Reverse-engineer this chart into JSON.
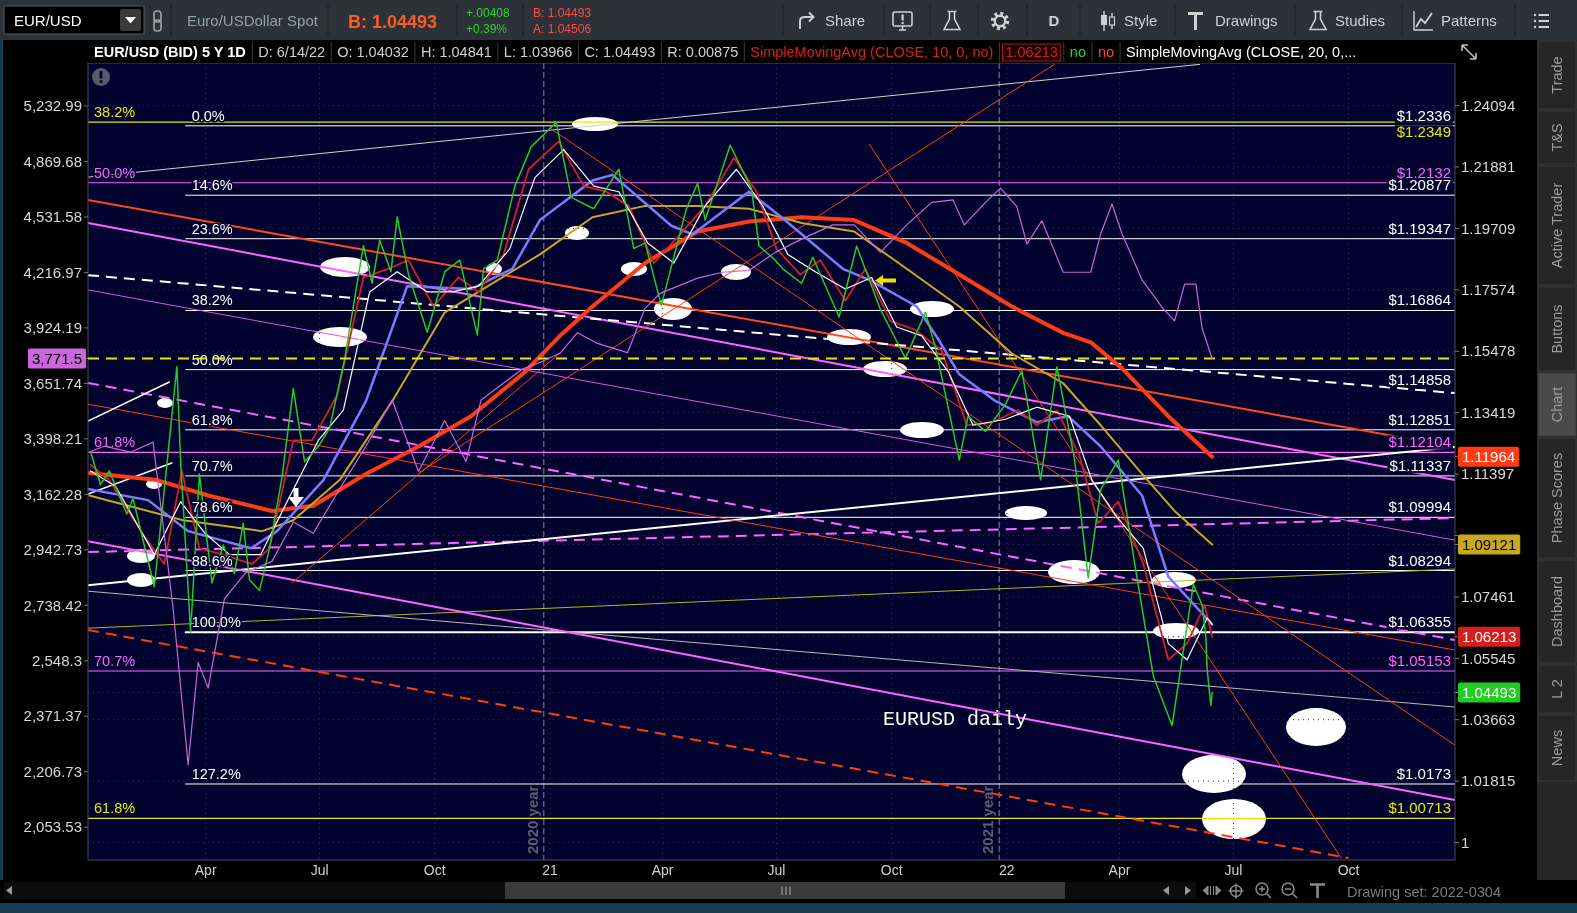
{
  "chart_data": [
    {
      "type": "line",
      "title": "EUR/USD (BID) 5 Y 1D",
      "legend": "top",
      "grid": true,
      "log": true,
      "annotations": [
        "D: 6/14/22",
        "O: 1.04032",
        "H: 1.04841",
        "L: 1.03966",
        "C: 1.04493",
        "R: 0.00875",
        "1.06213",
        "no",
        "no",
        "EURUSD daily",
        {
          "text": "0.0%",
          "x": "2020-03-16",
          "y": 1.2336
        },
        {
          "text": "14.6%",
          "x": "2020-03-16",
          "y": 1.20877
        },
        {
          "text": "23.6%",
          "x": "2020-03-16",
          "y": 1.19347
        },
        {
          "text": "38.2%",
          "x": "2020-03-16",
          "y": 1.16864
        },
        {
          "text": "50.0%",
          "x": "2020-03-16",
          "y": 1.14858
        },
        {
          "text": "61.8%",
          "x": "2020-03-16",
          "y": 1.12851
        },
        {
          "text": "70.7%",
          "x": "2020-03-16",
          "y": 1.11337
        },
        {
          "text": "78.6%",
          "x": "2020-03-16",
          "y": 1.09994
        },
        {
          "text": "88.6%",
          "x": "2020-03-16",
          "y": 1.08294
        },
        {
          "text": "100.0%",
          "x": "2020-03-16",
          "y": 1.06355
        },
        {
          "text": "127.2%",
          "x": "2020-03-16",
          "y": 1.0173
        },
        {
          "text": "38.2%",
          "x": "2019-12-29",
          "y": 1.2349
        },
        {
          "text": "50.0%",
          "x": "2019-12-29",
          "y": 1.2132
        },
        {
          "text": "61.8%",
          "x": "2019-12-29",
          "y": 1.12104
        },
        {
          "text": "70.7%",
          "x": "2019-12-29",
          "y": 1.05153
        },
        {
          "text": "61.8%",
          "x": "2019-12-29",
          "y": 1.00713
        }
      ],
      "xlim": [
        "2019-12-29",
        "2022-12-25"
      ],
      "xticks": [
        {
          "value": "2020-04-01",
          "label": "Apr"
        },
        {
          "value": "2020-07-01",
          "label": "Jul"
        },
        {
          "value": "2020-10-01",
          "label": "Oct"
        },
        {
          "value": "2021-01-01",
          "label": "21"
        },
        {
          "value": "2021-04-01",
          "label": "Apr"
        },
        {
          "value": "2021-07-01",
          "label": "Jul"
        },
        {
          "value": "2021-10-01",
          "label": "Oct"
        },
        {
          "value": "2022-01-01",
          "label": "22"
        },
        {
          "value": "2022-04-01",
          "label": "Apr"
        },
        {
          "value": "2022-07-01",
          "label": "Jul"
        },
        {
          "value": "2022-10-01",
          "label": "Oct"
        }
      ],
      "ylim": [
        0.9949,
        1.2565
      ],
      "yticks": [
        1,
        1.01815,
        1.03663,
        1.04493,
        1.05545,
        1.06213,
        1.07461,
        1.09121,
        {
          "value": 1.09411,
          "label": null
        },
        1.11397,
        1.11964,
        1.13419,
        1.15478,
        1.17574,
        1.19709,
        1.21881,
        1.24094
      ],
      "ref_lines": [
        {
          "axis": "x",
          "value": "2020-12-27",
          "label": "2020 year",
          "color": "#5e5e72",
          "line_style": "dashed"
        },
        {
          "axis": "x",
          "value": "2021-12-26",
          "label": "2021 year",
          "color": "#5e5e72",
          "line_style": "dashed"
        }
      ],
      "series": [
        {
          "color": "#ffffff",
          "x": [
            "2020-03-16",
            "2022-12-25"
          ],
          "values": [
            1.2336,
            1.2336
          ],
          "value_labels": [
            null,
            "$1.2336"
          ]
        },
        {
          "color": "#ffffff",
          "x": [
            "2020-03-16",
            "2022-12-25"
          ],
          "values": [
            1.20877,
            1.20877
          ],
          "value_labels": [
            null,
            "$1.20877"
          ]
        },
        {
          "color": "#ffffff",
          "x": [
            "2020-03-16",
            "2022-12-25"
          ],
          "values": [
            1.19347,
            1.19347
          ],
          "value_labels": [
            null,
            "$1.19347"
          ]
        },
        {
          "color": "#ffffff",
          "x": [
            "2020-03-16",
            "2022-12-25"
          ],
          "values": [
            1.16864,
            1.16864
          ],
          "value_labels": [
            null,
            "$1.16864"
          ]
        },
        {
          "color": "#ffffff",
          "x": [
            "2020-03-16",
            "2022-12-25"
          ],
          "values": [
            1.14858,
            1.14858
          ],
          "value_labels": [
            null,
            "$1.14858"
          ]
        },
        {
          "color": "#ffffff",
          "x": [
            "2020-03-16",
            "2022-12-25"
          ],
          "values": [
            1.12851,
            1.12851
          ],
          "value_labels": [
            null,
            "$1.12851"
          ]
        },
        {
          "color": "#ffffff",
          "x": [
            "2020-03-16",
            "2022-12-25"
          ],
          "values": [
            1.11337,
            1.11337
          ],
          "value_labels": [
            null,
            "$1.11337"
          ]
        },
        {
          "color": "#ffffff",
          "x": [
            "2020-03-16",
            "2022-12-25"
          ],
          "values": [
            1.09994,
            1.09994
          ],
          "value_labels": [
            null,
            "$1.09994"
          ]
        },
        {
          "color": "#ffffff",
          "x": [
            "2020-03-16",
            "2022-12-25"
          ],
          "values": [
            1.08294,
            1.08294
          ],
          "value_labels": [
            null,
            "$1.08294"
          ]
        },
        {
          "color": "#ffffff",
          "x": [
            "2020-03-16",
            "2022-12-25"
          ],
          "values": [
            1.06355,
            1.06355
          ],
          "value_labels": [
            null,
            "$1.06355"
          ]
        },
        {
          "color": "#ffffff",
          "x": [
            "2020-03-16",
            "2022-12-25"
          ],
          "values": [
            1.0173,
            1.0173
          ],
          "value_labels": [
            null,
            "$1.0173"
          ]
        },
        {
          "color": "#e8e800",
          "x": [
            "2019-12-29",
            "2022-12-25"
          ],
          "values": [
            1.2349,
            1.2349
          ],
          "value_labels": [
            null,
            "$1.2349"
          ]
        },
        {
          "color": "#ff66ff",
          "x": [
            "2019-12-29",
            "2022-12-25"
          ],
          "values": [
            1.2132,
            1.2132
          ],
          "value_labels": [
            null,
            "$1.2132"
          ]
        },
        {
          "color": "#ff66ff",
          "x": [
            "2019-12-29",
            "2022-12-25"
          ],
          "values": [
            1.12104,
            1.12104
          ],
          "value_labels": [
            null,
            "$1.12104"
          ]
        },
        {
          "color": "#ff66ff",
          "x": [
            "2019-12-29",
            "2022-12-25"
          ],
          "values": [
            1.05153,
            1.05153
          ],
          "value_labels": [
            null,
            "$1.05153"
          ]
        },
        {
          "color": "#e8e800",
          "x": [
            "2019-12-29",
            "2022-12-25"
          ],
          "values": [
            1.00713,
            1.00713
          ],
          "value_labels": [
            null,
            "$1.00713"
          ]
        },
        {
          "color": "#cfcfcf",
          "x": [
            "2019-12-29",
            "2022-06-04"
          ],
          "values": [
            1.2152,
            1.256
          ]
        },
        {
          "color": "#ff4a1c",
          "x": [
            "2019-12-29",
            "2022-12-25"
          ],
          "values": [
            1.2071,
            1.1228
          ]
        },
        {
          "color": "#ff66ff",
          "x": [
            "2019-12-29",
            "2022-12-25"
          ],
          "values": [
            1.199,
            1.112
          ]
        },
        {
          "color": "#ffffff",
          "line_style": "dashed",
          "x": [
            "2019-12-29",
            "2022-12-25"
          ],
          "values": [
            1.1808,
            1.1407
          ]
        },
        {
          "color": "#dd55dd",
          "x": [
            "2019-12-29",
            "2022-12-25"
          ],
          "values": [
            1.1757,
            1.0926
          ]
        },
        {
          "color": "#ff66ff",
          "line_style": "dashed",
          "x": [
            "2019-12-29",
            "2022-12-25"
          ],
          "values": [
            1.1441,
            1.0611
          ]
        },
        {
          "color": "#ff66ff",
          "line_style": "dashed",
          "x": [
            "2019-12-29",
            "2022-12-25"
          ],
          "values": [
            1.0888,
            1.0997
          ]
        },
        {
          "color": "#ffffff",
          "x": [
            "2019-12-29",
            "2022-12-25"
          ],
          "values": [
            1.0783,
            1.1228
          ]
        },
        {
          "color": "#b4b41e",
          "x": [
            "2019-12-29",
            "2022-12-25"
          ],
          "values": [
            1.0648,
            1.0834
          ]
        },
        {
          "color": "#b8b8b8",
          "x": [
            "2019-12-29",
            "2022-12-25"
          ],
          "values": [
            1.0764,
            1.0405
          ]
        },
        {
          "color": "#ff66ff",
          "x": [
            "2019-12-29",
            "2022-12-25"
          ],
          "values": [
            1.0923,
            1.0125
          ]
        },
        {
          "color": "#ff3c14",
          "line_style": "dashed",
          "x": [
            "2019-12-29",
            "2022-10-01"
          ],
          "values": [
            1.0642,
            0.9955
          ]
        },
        {
          "color": "#ff3c14",
          "x": [
            "2019-12-29",
            "2022-12-25"
          ],
          "values": [
            1.137,
            1.058
          ]
        },
        {
          "color": "#ff3c14",
          "x": [
            "2021-01-01",
            "2022-12-25"
          ],
          "values": [
            1.2328,
            1.0289
          ]
        },
        {
          "color": "#ff3c14",
          "x": [
            "2021-09-13",
            "2022-09-25"
          ],
          "values": [
            1.227,
            0.9955
          ]
        },
        {
          "color": "#ff3c14",
          "x": [
            "2020-09-19",
            "2022-02-08"
          ],
          "values": [
            1.1146,
            1.256
          ]
        },
        {
          "color": "#ff3c14",
          "x": [
            "2020-06-09",
            "2021-01-09"
          ],
          "values": [
            1.079,
            1.1542
          ]
        },
        {
          "color": "#ffffff",
          "x": [
            "2019-12-29",
            "2020-03-03"
          ],
          "values": [
            1.1314,
            1.1444
          ]
        },
        {
          "color": "#ffffff",
          "x": [
            "2019-12-29",
            "2020-03-05"
          ],
          "values": [
            1.1075,
            1.1176
          ]
        },
        {
          "color": "#ff3c14",
          "x": [
            "2019-12-30",
            "2020-02-22",
            "2020-04-03",
            "2020-05-24",
            "2020-06-26",
            "2020-08-07",
            "2020-09-18",
            "2020-10-30",
            "2020-12-10",
            "2021-01-09",
            "2021-02-04",
            "2021-03-18",
            "2021-04-29",
            "2021-06-09",
            "2021-07-21",
            "2021-09-01",
            "2021-10-13",
            "2021-11-24",
            "2022-01-05",
            "2022-02-15",
            "2022-03-09",
            "2022-04-03",
            "2022-05-10",
            "2022-06-14"
          ],
          "values": [
            1.1143,
            1.112,
            1.107,
            1.102,
            1.1037,
            1.114,
            1.123,
            1.133,
            1.147,
            1.16,
            1.17,
            1.185,
            1.196,
            1.1995,
            1.201,
            1.2,
            1.192,
            1.181,
            1.17,
            1.161,
            1.1578,
            1.149,
            1.133,
            1.11964
          ]
        },
        {
          "color": "#c8a820",
          "x": [
            "2019-12-30",
            "2020-03-14",
            "2020-05-16",
            "2020-06-10",
            "2020-07-17",
            "2020-08-28",
            "2020-10-09",
            "2020-11-20",
            "2020-12-24",
            "2021-02-04",
            "2021-03-18",
            "2021-04-29",
            "2021-06-09",
            "2021-07-21",
            "2021-09-01",
            "2021-10-13",
            "2021-11-24",
            "2022-01-05",
            "2022-02-15",
            "2022-03-17",
            "2022-04-19",
            "2022-05-15",
            "2022-06-14"
          ],
          "values": [
            1.107,
            1.099,
            1.0955,
            1.099,
            1.112,
            1.138,
            1.168,
            1.179,
            1.188,
            1.201,
            1.205,
            1.205,
            1.204,
            1.199,
            1.196,
            1.183,
            1.17,
            1.154,
            1.144,
            1.13,
            1.114,
            1.102,
            1.09121
          ]
        },
        {
          "color": "#7b7bff",
          "x": [
            "2019-12-30",
            "2020-02-15",
            "2020-03-18",
            "2020-05-07",
            "2020-05-28",
            "2020-07-04",
            "2020-08-07",
            "2020-09-09",
            "2020-10-30",
            "2020-12-02",
            "2020-12-24",
            "2021-02-04",
            "2021-02-20",
            "2021-04-08",
            "2021-04-25",
            "2021-06-09",
            "2021-07-05",
            "2021-08-23",
            "2021-09-14",
            "2021-10-21",
            "2021-11-07",
            "2021-11-24",
            "2021-12-23",
            "2022-01-25",
            "2022-02-19",
            "2022-03-17",
            "2022-04-19",
            "2022-05-10",
            "2022-06-14"
          ],
          "values": [
            1.109,
            1.1055,
            1.0955,
            1.09,
            1.0955,
            1.112,
            1.138,
            1.177,
            1.176,
            1.183,
            1.2,
            1.214,
            1.216,
            1.198,
            1.195,
            1.21,
            1.201,
            1.183,
            1.179,
            1.17,
            1.159,
            1.147,
            1.138,
            1.131,
            1.133,
            1.123,
            1.107,
            1.081,
            1.066
          ]
        },
        {
          "name": "SimpleMovingAvg (CLOSE, 10, 0, no)",
          "color": "#d42020",
          "x": [
            "2019-12-31",
            "2020-01-15",
            "2020-02-10",
            "2020-02-28",
            "2020-03-13",
            "2020-03-27",
            "2020-04-15",
            "2020-05-08",
            "2020-05-22",
            "2020-06-10",
            "2020-06-25",
            "2020-07-15",
            "2020-08-05",
            "2020-08-25",
            "2020-09-10",
            "2020-09-30",
            "2020-10-20",
            "2020-11-05",
            "2020-11-25",
            "2020-12-15",
            "2021-01-08",
            "2021-01-28",
            "2021-02-15",
            "2021-03-05",
            "2021-03-25",
            "2021-04-15",
            "2021-05-05",
            "2021-05-28",
            "2021-06-15",
            "2021-07-01",
            "2021-07-20",
            "2021-08-05",
            "2021-08-25",
            "2021-09-10",
            "2021-09-30",
            "2021-10-20",
            "2021-11-10",
            "2021-11-30",
            "2021-12-20",
            "2022-01-10",
            "2022-01-25",
            "2022-02-10",
            "2022-02-28",
            "2022-03-15",
            "2022-03-31",
            "2022-04-20",
            "2022-05-10",
            "2022-05-25",
            "2022-06-08",
            "2022-06-14"
          ],
          "values": [
            1.117,
            1.112,
            1.095,
            1.085,
            1.115,
            1.09,
            1.088,
            1.085,
            1.09,
            1.125,
            1.125,
            1.14,
            1.18,
            1.183,
            1.186,
            1.17,
            1.18,
            1.175,
            1.188,
            1.218,
            1.228,
            1.212,
            1.21,
            1.205,
            1.185,
            1.195,
            1.205,
            1.222,
            1.21,
            1.19,
            1.181,
            1.186,
            1.172,
            1.183,
            1.165,
            1.162,
            1.155,
            1.13,
            1.131,
            1.135,
            1.13,
            1.135,
            1.12,
            1.098,
            1.105,
            1.085,
            1.055,
            1.06,
            1.072,
            1.06213
          ]
        },
        {
          "name": "SimpleMovingAvg (CLOSE, 20, 0,...",
          "color": "#ffffff",
          "x": [
            "2019-12-31",
            "2020-01-20",
            "2020-02-20",
            "2020-03-12",
            "2020-03-31",
            "2020-04-20",
            "2020-05-15",
            "2020-06-05",
            "2020-06-30",
            "2020-07-20",
            "2020-08-10",
            "2020-09-01",
            "2020-09-25",
            "2020-10-15",
            "2020-11-05",
            "2020-11-30",
            "2020-12-20",
            "2021-01-12",
            "2021-02-05",
            "2021-02-25",
            "2021-03-20",
            "2021-04-10",
            "2021-05-05",
            "2021-05-30",
            "2021-06-20",
            "2021-07-10",
            "2021-08-01",
            "2021-08-25",
            "2021-09-15",
            "2021-10-05",
            "2021-10-25",
            "2021-11-15",
            "2021-12-05",
            "2021-12-31",
            "2022-01-25",
            "2022-02-20",
            "2022-03-10",
            "2022-03-30",
            "2022-04-20",
            "2022-05-10",
            "2022-05-25",
            "2022-06-10",
            "2022-06-14"
          ],
          "values": [
            1.115,
            1.11,
            1.088,
            1.105,
            1.095,
            1.088,
            1.088,
            1.105,
            1.125,
            1.135,
            1.175,
            1.182,
            1.175,
            1.175,
            1.177,
            1.19,
            1.215,
            1.225,
            1.212,
            1.21,
            1.192,
            1.185,
            1.205,
            1.218,
            1.205,
            1.188,
            1.182,
            1.176,
            1.18,
            1.163,
            1.16,
            1.148,
            1.13,
            1.132,
            1.136,
            1.133,
            1.112,
            1.1,
            1.09,
            1.06,
            1.055,
            1.068,
            1.066
          ]
        },
        {
          "color": "#22cc22",
          "x": [
            "2019-12-31",
            "2020-01-08",
            "2020-01-15",
            "2020-01-29",
            "2020-02-03",
            "2020-02-20",
            "2020-03-09",
            "2020-03-12",
            "2020-03-20",
            "2020-03-27",
            "2020-04-06",
            "2020-04-15",
            "2020-04-24",
            "2020-05-01",
            "2020-05-06",
            "2020-05-14",
            "2020-05-22",
            "2020-06-01",
            "2020-06-10",
            "2020-06-19",
            "2020-06-30",
            "2020-07-09",
            "2020-07-21",
            "2020-07-31",
            "2020-08-05",
            "2020-08-12",
            "2020-08-18",
            "2020-08-27",
            "2020-09-01",
            "2020-09-10",
            "2020-09-25",
            "2020-10-09",
            "2020-10-21",
            "2020-11-04",
            "2020-11-09",
            "2020-11-20",
            "2020-12-04",
            "2020-12-17",
            "2021-01-06",
            "2021-01-18",
            "2021-02-05",
            "2021-02-25",
            "2021-03-09",
            "2021-03-18",
            "2021-03-31",
            "2021-04-20",
            "2021-04-29",
            "2021-05-05",
            "2021-05-25",
            "2021-06-11",
            "2021-06-17",
            "2021-06-30",
            "2021-07-06",
            "2021-07-21",
            "2021-07-30",
            "2021-08-20",
            "2021-09-03",
            "2021-09-22",
            "2021-10-12",
            "2021-10-28",
            "2021-11-05",
            "2021-11-24",
            "2021-12-01",
            "2021-12-15",
            "2021-12-31",
            "2022-01-13",
            "2022-01-28",
            "2022-02-10",
            "2022-02-24",
            "2022-03-07",
            "2022-03-17",
            "2022-03-31",
            "2022-04-14",
            "2022-04-28",
            "2022-05-13",
            "2022-05-30",
            "2022-06-06",
            "2022-06-09",
            "2022-06-10",
            "2022-06-13",
            "2022-06-14"
          ],
          "values": [
            1.1213,
            1.1105,
            1.115,
            1.101,
            1.106,
            1.0778,
            1.1496,
            1.118,
            1.0636,
            1.114,
            1.079,
            1.091,
            1.082,
            1.098,
            1.08,
            1.0766,
            1.09,
            1.113,
            1.1422,
            1.118,
            1.123,
            1.129,
            1.152,
            1.178,
            1.191,
            1.178,
            1.193,
            1.182,
            1.2011,
            1.181,
            1.1612,
            1.182,
            1.186,
            1.1603,
            1.183,
            1.186,
            1.212,
            1.226,
            1.2349,
            1.208,
            1.204,
            1.218,
            1.19,
            1.192,
            1.1704,
            1.204,
            1.213,
            1.2,
            1.2266,
            1.211,
            1.191,
            1.186,
            1.183,
            1.178,
            1.187,
            1.1664,
            1.1909,
            1.169,
            1.1524,
            1.168,
            1.156,
            1.1186,
            1.133,
            1.128,
            1.137,
            1.1482,
            1.1121,
            1.1495,
            1.119,
            1.0806,
            1.109,
            1.1185,
            1.083,
            1.05,
            1.0349,
            1.0786,
            1.072,
            1.062,
            1.052,
            1.041,
            1.04493
          ]
        }
      ]
    },
    {
      "type": "line",
      "log": true,
      "tick_labels": "y",
      "xlim": [
        "2019-12-29",
        "2022-12-25"
      ],
      "ylim": [
        1968,
        5533
      ],
      "yticks": [
        {
          "value": 2053.53,
          "label": "2,053.53"
        },
        {
          "value": 2206.73,
          "label": "2,206.73"
        },
        {
          "value": 2371.37,
          "label": "2,371.37"
        },
        {
          "value": 2548.3,
          "label": "2,548.3"
        },
        {
          "value": 2738.42,
          "label": "2,738.42"
        },
        {
          "value": 2942.73,
          "label": "2,942.73"
        },
        {
          "value": 3162.28,
          "label": "3,162.28"
        },
        {
          "value": 3398.21,
          "label": "3,398.21"
        },
        {
          "value": 3651.74,
          "label": "3,651.74"
        },
        {
          "value": 3771.5,
          "label": "3,771.5"
        },
        {
          "value": 3924.19,
          "label": "3,924.19"
        },
        {
          "value": 4216.97,
          "label": "4,216.97"
        },
        {
          "value": 4531.58,
          "label": "4,531.58"
        },
        {
          "value": 4869.68,
          "label": "4,869.68"
        },
        {
          "value": 5232.99,
          "label": "5,232.99"
        }
      ],
      "ref_lines": [
        {
          "axis": "y",
          "value": 3771.5,
          "color": "#e8e800",
          "line_style": "dashed"
        }
      ],
      "series": [
        {
          "color": "#cc66dd",
          "x": [
            "2019-12-31",
            "2020-01-11",
            "2020-02-01",
            "2020-02-19",
            "2020-03-06",
            "2020-03-18",
            "2020-03-26",
            "2020-04-03",
            "2020-04-16",
            "2020-05-03",
            "2020-05-24",
            "2020-06-10",
            "2020-06-26",
            "2020-07-17",
            "2020-08-07",
            "2020-08-28",
            "2020-09-18",
            "2020-10-09",
            "2020-10-26",
            "2020-11-07",
            "2020-12-10",
            "2020-12-24",
            "2021-01-09",
            "2021-01-23",
            "2021-02-08",
            "2021-03-04",
            "2021-03-18",
            "2021-03-30",
            "2021-04-29",
            "2021-05-19",
            "2021-06-09",
            "2021-06-30",
            "2021-07-21",
            "2021-08-15",
            "2021-09-01",
            "2021-09-22",
            "2021-10-13",
            "2021-11-02",
            "2021-11-19",
            "2021-11-28",
            "2021-12-15",
            "2021-12-27",
            "2022-01-09",
            "2022-01-17",
            "2022-01-29",
            "2022-02-15",
            "2022-03-09",
            "2022-03-17",
            "2022-03-26",
            "2022-04-03",
            "2022-04-19",
            "2022-05-06",
            "2022-05-15",
            "2022-05-23",
            "2022-06-01",
            "2022-06-06",
            "2022-06-14"
          ],
          "values": [
            3343,
            3366,
            3340,
            3384,
            2726,
            2227,
            2543,
            2460,
            2761,
            2857,
            2899,
            3051,
            3007,
            3184,
            3366,
            3574,
            3257,
            3480,
            3300,
            3574,
            3720,
            3752,
            3797,
            3900,
            3846,
            3800,
            4025,
            4104,
            4186,
            4218,
            4228,
            4328,
            4403,
            4485,
            4485,
            4328,
            4485,
            4618,
            4633,
            4485,
            4618,
            4704,
            4592,
            4375,
            4509,
            4218,
            4218,
            4434,
            4608,
            4434,
            4176,
            4022,
            3960,
            4153,
            4153,
            3921,
            3771.5
          ]
        }
      ]
    },
    {
      "type": "other",
      "annotations": [
        "EUR/USD",
        "Euro/USDollar Spot",
        "B: 1.04493",
        "+.00408",
        "+0.39%",
        "B: 1.04493",
        "A: 1.04506",
        "Share",
        "D",
        "Style",
        "Drawings",
        "Studies",
        "Patterns"
      ]
    },
    {
      "type": "other",
      "annotations": [
        "Trade",
        "T&S",
        "Active Trader",
        "Buttons",
        "Chart",
        "Phase Scores",
        "Dashboard",
        "L 2",
        "News"
      ]
    },
    {
      "type": "other",
      "annotations": [
        "Drawing set: 2022-0304"
      ]
    }
  ]
}
